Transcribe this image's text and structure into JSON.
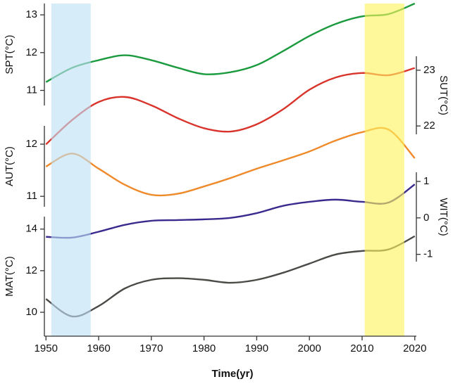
{
  "chart_data": [
    {
      "type": "line",
      "ylabel": "SPT(°C)",
      "axis_side": "left",
      "ylim": [
        10.6,
        13.3
      ],
      "yticks": [
        11,
        12,
        13
      ],
      "color": "#1b9a3e",
      "x": [
        1950,
        1955,
        1960,
        1965,
        1970,
        1975,
        1980,
        1985,
        1990,
        1995,
        2000,
        2005,
        2010,
        2015,
        2020
      ],
      "values": [
        11.22,
        11.6,
        11.8,
        11.93,
        11.8,
        11.6,
        11.43,
        11.48,
        11.67,
        12.04,
        12.44,
        12.76,
        12.96,
        13.02,
        13.3
      ]
    },
    {
      "type": "line",
      "ylabel": "SUT(°C)",
      "axis_side": "right",
      "ylim": [
        21.85,
        23.25
      ],
      "yticks": [
        22,
        23
      ],
      "color": "#d9342b",
      "x": [
        1950,
        1955,
        1960,
        1965,
        1970,
        1975,
        1980,
        1985,
        1990,
        1995,
        2000,
        2005,
        2010,
        2015,
        2020
      ],
      "values": [
        21.67,
        22.11,
        22.43,
        22.52,
        22.37,
        22.14,
        21.96,
        21.9,
        22.03,
        22.3,
        22.65,
        22.87,
        22.95,
        22.91,
        23.04
      ]
    },
    {
      "type": "line",
      "ylabel": "AUT(°C)",
      "axis_side": "left",
      "ylim": [
        10.8,
        12.35
      ],
      "yticks": [
        11,
        12
      ],
      "color": "#ef8a2b",
      "x": [
        1950,
        1955,
        1960,
        1965,
        1970,
        1975,
        1980,
        1985,
        1990,
        1995,
        2000,
        2005,
        2010,
        2015,
        2020
      ],
      "values": [
        11.57,
        11.82,
        11.53,
        11.22,
        11.03,
        11.05,
        11.19,
        11.35,
        11.53,
        11.69,
        11.86,
        12.07,
        12.23,
        12.28,
        11.73
      ]
    },
    {
      "type": "line",
      "ylabel": "WIT(°C)",
      "axis_side": "right",
      "ylim": [
        -1.2,
        1.25
      ],
      "yticks": [
        -1,
        0,
        1
      ],
      "color": "#3a2a8e",
      "x": [
        1950,
        1955,
        1960,
        1965,
        1970,
        1975,
        1980,
        1985,
        1990,
        1995,
        2000,
        2005,
        2010,
        2015,
        2020
      ],
      "values": [
        -0.52,
        -0.54,
        -0.38,
        -0.19,
        -0.08,
        -0.06,
        -0.04,
        0,
        0.13,
        0.33,
        0.44,
        0.5,
        0.44,
        0.42,
        0.92
      ]
    },
    {
      "type": "line",
      "ylabel": "MAT(°C)",
      "axis_side": "left",
      "ylim": [
        8.85,
        14.6
      ],
      "yticks": [
        10,
        12,
        14
      ],
      "color": "#4a4a47",
      "x": [
        1950,
        1955,
        1960,
        1965,
        1970,
        1975,
        1980,
        1985,
        1990,
        1995,
        2000,
        2005,
        2010,
        2015,
        2020
      ],
      "values": [
        10.64,
        9.8,
        10.3,
        11.15,
        11.56,
        11.64,
        11.56,
        11.42,
        11.56,
        11.9,
        12.34,
        12.78,
        12.95,
        13.02,
        13.66
      ],
      "xlabel": "Time(yr)",
      "xlim": [
        1949.7,
        2020.3
      ],
      "xticks": [
        1950,
        1960,
        1970,
        1980,
        1990,
        2000,
        2010,
        2020
      ],
      "spans": [
        {
          "xlim": [
            1951,
            1958.5
          ],
          "color": "#bfe0f5"
        },
        {
          "xlim": [
            2010.5,
            2018
          ],
          "color": "#fff35c"
        }
      ]
    }
  ]
}
